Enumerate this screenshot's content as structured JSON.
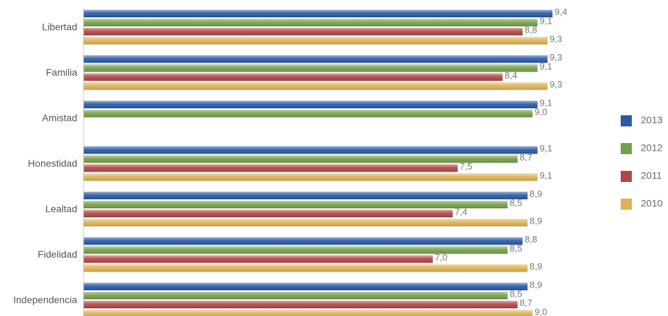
{
  "chart_data": {
    "type": "bar",
    "orientation": "horizontal",
    "categories": [
      "Libertad",
      "Familia",
      "Amistad",
      "Honestidad",
      "Lealtad",
      "Fidelidad",
      "Independencia"
    ],
    "series": [
      {
        "name": "2013",
        "color": "#2a5aa5",
        "values": [
          9.4,
          9.3,
          9.1,
          9.1,
          8.9,
          8.8,
          8.9
        ],
        "labels": [
          "9,4",
          "9,3",
          "9,1",
          "9,1",
          "8,9",
          "8,8",
          "8,9"
        ]
      },
      {
        "name": "2012",
        "color": "#76a04a",
        "values": [
          9.1,
          9.1,
          9.0,
          8.7,
          8.5,
          8.5,
          8.5
        ],
        "labels": [
          "9,1",
          "9,1",
          "9,0",
          "8,7",
          "8,5",
          "8,5",
          "8,5"
        ]
      },
      {
        "name": "2011",
        "color": "#b14646",
        "values": [
          8.8,
          8.4,
          null,
          7.5,
          7.4,
          7.0,
          8.7
        ],
        "labels": [
          "8,8",
          "8,4",
          null,
          "7,5",
          "7,4",
          "7,0",
          "8,7"
        ]
      },
      {
        "name": "2010",
        "color": "#ddb355",
        "values": [
          9.3,
          9.3,
          null,
          9.1,
          8.9,
          8.9,
          9.0
        ],
        "labels": [
          "9,3",
          "9,3",
          null,
          "9,1",
          "8,9",
          "8,9",
          "9,0"
        ]
      }
    ],
    "xlim": [
      0,
      9.4
    ],
    "grid": false,
    "legend_position": "right"
  }
}
